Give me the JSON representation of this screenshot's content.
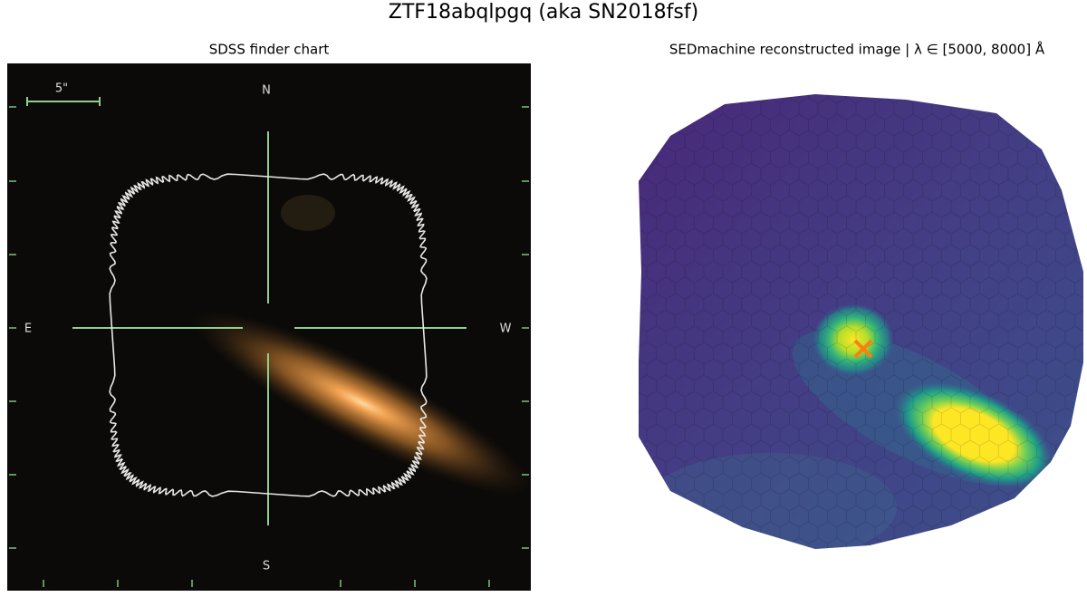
{
  "figure": {
    "title": "ZTF18abqlpgq (aka SN2018fsf)",
    "panels": [
      {
        "title": "SDSS finder chart",
        "scale_label": "5\"",
        "compass": {
          "north": "N",
          "south": "S",
          "east": "E",
          "west": "W"
        }
      },
      {
        "title": "SEDmachine reconstructed image | λ ∈ [5000, 8000] Å"
      }
    ]
  }
}
